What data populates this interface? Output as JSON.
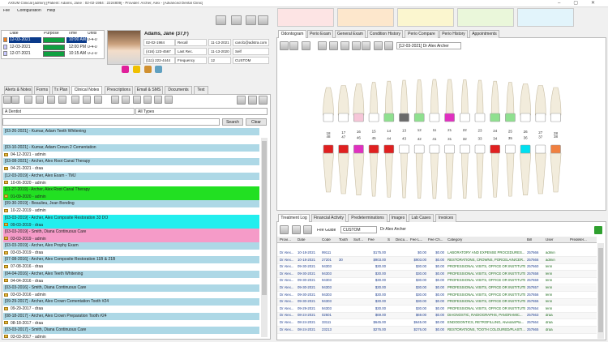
{
  "window": {
    "title": "AXIUM Clinical [admin] [Patient: Adams, Jane : 02-02-1984 : 2224809] - Provider: Archer, Alex - [Advanced Dental Clinic]"
  },
  "menu": [
    "File",
    "Configuration",
    "Help"
  ],
  "appointments": {
    "headers": [
      "Date",
      "Purpose",
      "Time",
      "Units"
    ],
    "rows": [
      {
        "date": "12-03-2021",
        "time": "10:00 AM",
        "units": "0-4-0"
      },
      {
        "date": "12-03-2021",
        "time": "12:00 PM",
        "units": "0-4-0"
      },
      {
        "date": "12-07-2021",
        "time": "10:15 AM",
        "units": "0-2-0"
      }
    ]
  },
  "patient": {
    "name": "Adams, Jane  (37,F)",
    "rows": [
      [
        "02-02-1984",
        "Recall",
        "11-13-2021",
        "carol1@adstra.com"
      ],
      [
        "(416) 123-4567",
        "Last Rec.",
        "11-13-2020",
        "Self"
      ],
      [
        "(111) 222-4444",
        "Frequency",
        "12",
        "CUSTOM"
      ]
    ]
  },
  "left_tabs": [
    "Alerts & Notes",
    "Forms",
    "Tx Plan",
    "Clinical Notes",
    "Prescriptions",
    "Email & SMS",
    "Documents",
    "Text"
  ],
  "filters": {
    "provider": "A Dentist",
    "type": "All Types"
  },
  "search_buttons": [
    "Search",
    "Clear"
  ],
  "notes": [
    {
      "title": "[03-26-2021] - Kumar, Adam Teeth Whitening"
    },
    {
      "title": "[03-10-2021] - Kumar, Adam Crown 2 Cementation",
      "sub": "04-12-2021 - admin"
    },
    {
      "title": "[03-08-2021] - Archer, Alex Root Canal Therapy",
      "sub": "04-21-2021 - draa"
    },
    {
      "title": "[12-03-2019] - Archer, Alex Exam - TMJ",
      "sub": "10-06-2020 - admin"
    },
    {
      "title": "[11-27-2019] - Archer, Alex Root Canal Therapy",
      "sub": "01-09-2020 - admin",
      "color": "#22e022"
    },
    {
      "title": "[09-30-2019] - Beaulieu, Jean Bonding",
      "sub": "10-22-2019 - admin"
    },
    {
      "title": "[03-03-2019] - Archer, Alex Composite Restoration 33 DO",
      "sub": "09-03-2019 - draa",
      "color": "#22eeee"
    },
    {
      "title": "[03-03-2019] - Smith, Diana Continuous Care",
      "sub": "03-03-2019 - admin",
      "color": "#f59bc8"
    },
    {
      "title": "[03-03-2019] - Archer, Alex Prophy Exam",
      "sub": "03-03-2019 - draa"
    },
    {
      "title": "[07-08-2016] - Archer, Alex Composite Restoration 11B & 21B",
      "sub": "07-08-2016 - draa"
    },
    {
      "title": "[04-04-2016] - Archer, Alex Teeth Whitening",
      "sub": "04-04-2016 - draa"
    },
    {
      "title": "[03-03-2016] - Smith, Diana Continuous Care",
      "sub": "03-03-2016 - admin"
    },
    {
      "title": "[09-29-2017] - Archer, Alex Crown Cementation Tooth #24",
      "sub": "09-29-2017 - draa"
    },
    {
      "title": "[08-18-2017] - Archer, Alex Crown Preparation Tooth #24",
      "sub": "08-18-2017 - draa"
    },
    {
      "title": "[03-03-2017] - Smith, Diana Continuous Care",
      "sub": "03-03-2017 - admin"
    }
  ],
  "right_tabs": [
    "Odontogram",
    "Perio Exam",
    "General Exam",
    "Condition History",
    "Perio Compare",
    "Perio History",
    "Appointments"
  ],
  "odontogram": {
    "visit": "[12-03-2021] Dr Alex Archer",
    "upper": [
      {
        "label": "18"
      },
      {
        "label": "17"
      },
      {
        "label": "16",
        "color": "#f6c6d8"
      },
      {
        "label": "15"
      },
      {
        "label": "14",
        "color": "#8fe08f"
      },
      {
        "label": "13",
        "color": "#6a6a6a"
      },
      {
        "label": "12",
        "color": "#8fe08f"
      },
      {
        "label": "11"
      },
      {
        "label": "21",
        "color": "#e030c0"
      },
      {
        "label": "22"
      },
      {
        "label": "23"
      },
      {
        "label": "24",
        "color": "#8fe08f"
      },
      {
        "label": "25",
        "color": "#8fe08f"
      },
      {
        "label": "26"
      },
      {
        "label": "27"
      },
      {
        "label": "28"
      }
    ],
    "lower": [
      {
        "label": "48",
        "color": "#e02020"
      },
      {
        "label": "47",
        "color": "#e02020"
      },
      {
        "label": "46",
        "color": "#e030c0"
      },
      {
        "label": "45",
        "color": "#e02020"
      },
      {
        "label": "44",
        "color": "#e02020"
      },
      {
        "label": "43"
      },
      {
        "label": "42"
      },
      {
        "label": "41"
      },
      {
        "label": "31"
      },
      {
        "label": "32"
      },
      {
        "label": "33"
      },
      {
        "label": "34",
        "color": "#e02020"
      },
      {
        "label": "35"
      },
      {
        "label": "36",
        "color": "#00e0f0"
      },
      {
        "label": "37"
      },
      {
        "label": "38",
        "color": "#f08040"
      }
    ]
  },
  "bottom_tabs": [
    "Treatment Log",
    "Financial Activity",
    "Predeterminations",
    "Images",
    "Lab Cases",
    "Invoices"
  ],
  "fee_bar": {
    "label": "Fee Guide",
    "guide": "CUSTOM",
    "provider": "Dr Alex Archer"
  },
  "treatment_log": {
    "headers": [
      "Provi...",
      "Date",
      "Code",
      "Tooth",
      "Surf...",
      "Fee",
      "S",
      "Discu...",
      "Fee L...",
      "Fee Ch...",
      "Category",
      "Bill",
      "User",
      "Predeter..."
    ],
    "rows": [
      {
        "provider": "Dr Alex...",
        "date": "10-18-2021",
        "code": "99111",
        "fee": "$175.00",
        "fee_l": "$0.00",
        "fee_ch": "$0.00",
        "category": "LABORATORY AND EXPENSE PROCEDURES...",
        "bill": "257666",
        "user": "admin"
      },
      {
        "provider": "Dr Alex...",
        "date": "10-18-2021",
        "code": "27201",
        "tooth": "30",
        "fee": "$903.00",
        "fee_l": "$903.00",
        "fee_ch": "$0.00",
        "category": "RESTORATIONS, CROWNS, PORCELAIN/CER...",
        "bill": "257666",
        "user": "admin"
      },
      {
        "provider": "Dr Alex...",
        "date": "09-30-2021",
        "code": "94303",
        "fee": "$30.00",
        "fee_l": "$30.00",
        "fee_ch": "$0.00",
        "category": "PROFESSIONAL VISITS, OFFICE OR INSTITUTE...",
        "bill": "257660",
        "user": "lenn"
      },
      {
        "provider": "Dr Alex...",
        "date": "09-30-2021",
        "code": "94303",
        "fee": "$30.00",
        "fee_l": "$30.00",
        "fee_ch": "$0.00",
        "category": "PROFESSIONAL VISITS, OFFICE OR INSTITUTE...",
        "bill": "257658",
        "user": "lenn"
      },
      {
        "provider": "Dr Alex...",
        "date": "09-30-2021",
        "code": "94303",
        "fee": "$30.00",
        "fee_l": "$30.00",
        "fee_ch": "$0.00",
        "category": "PROFESSIONAL VISITS, OFFICE OR INSTITUTE...",
        "bill": "257659",
        "user": "lenn"
      },
      {
        "provider": "Dr Alex...",
        "date": "09-30-2021",
        "code": "94303",
        "fee": "$30.00",
        "fee_l": "$30.00",
        "fee_ch": "$0.00",
        "category": "PROFESSIONAL VISITS, OFFICE OR INSTITUTE...",
        "bill": "257657",
        "user": "lenn"
      },
      {
        "provider": "Dr Alex...",
        "date": "09-30-2021",
        "code": "94303",
        "fee": "$30.00",
        "fee_l": "$30.00",
        "fee_ch": "$0.00",
        "category": "PROFESSIONAL VISITS, OFFICE OR INSTITUTE...",
        "bill": "257656",
        "user": "lenn"
      },
      {
        "provider": "Dr Alex...",
        "date": "09-30-2021",
        "code": "94303",
        "fee": "$30.00",
        "fee_l": "$30.00",
        "fee_ch": "$0.00",
        "category": "PROFESSIONAL VISITS, OFFICE OR INSTITUTE...",
        "bill": "257655",
        "user": "lenn"
      },
      {
        "provider": "Dr Alex...",
        "date": "09-29-2021",
        "code": "94303",
        "fee": "$30.00",
        "fee_l": "$30.00",
        "fee_ch": "$0.00",
        "category": "PROFESSIONAL VISITS, OFFICE OR INSTITUTE...",
        "bill": "257654",
        "user": "lenn"
      },
      {
        "provider": "Dr Alex...",
        "date": "08-24-2021",
        "code": "02601",
        "fee": "$69.00",
        "fee_l": "$69.00",
        "fee_ch": "$0.00",
        "category": "DIAGNOSTIC, RADIOGRAPHS, PANORAMIC...",
        "bill": "257663",
        "user": "draa"
      },
      {
        "provider": "Dr Alex...",
        "date": "08-24-2021",
        "code": "33111",
        "fee": "$645.00",
        "fee_l": "$645.00",
        "fee_ch": "$0.00",
        "category": "ENDODONTICS, RETROFILLING, Alveolar/Pla...",
        "bill": "257664",
        "user": "draa"
      },
      {
        "provider": "Dr Alex...",
        "date": "08-24-2021",
        "code": "23213",
        "fee": "$276.00",
        "fee_l": "$276.00",
        "fee_ch": "$0.00",
        "category": "RESTORATIONS, TOOTH COLOURED/PLASTI...",
        "bill": "257665",
        "user": "draa"
      }
    ]
  }
}
